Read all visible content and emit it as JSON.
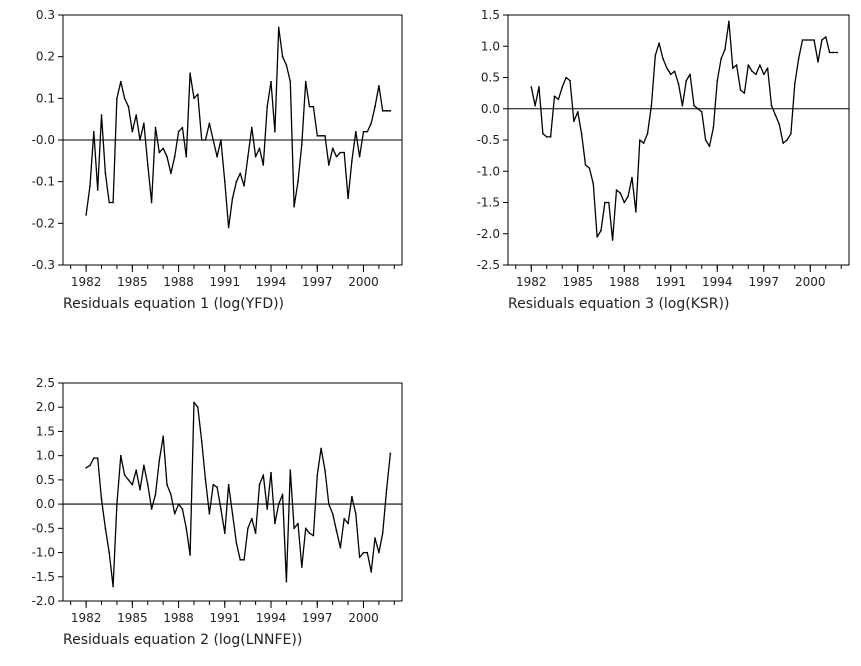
{
  "chart_data": [
    {
      "type": "line",
      "xlabel": "Residuals equation 1 (log(YFD))",
      "ylabel": "",
      "ylim": [
        -0.3,
        0.3
      ],
      "yticks": [
        "0.3",
        "0.2",
        "0.1",
        "-0.0",
        "-0.1",
        "-0.2",
        "-0.3"
      ],
      "ytick_values": [
        0.3,
        0.2,
        0.1,
        0.0,
        -0.1,
        -0.2,
        -0.3
      ],
      "xlim": [
        1980.5,
        2002.5
      ],
      "xticks": [
        "1982",
        "1985",
        "1988",
        "1991",
        "1994",
        "1997",
        "2000"
      ],
      "xtick_values": [
        1982,
        1985,
        1988,
        1991,
        1994,
        1997,
        2000
      ],
      "reference_line": 0,
      "series": [
        {
          "x": [
            1982.0,
            1982.25,
            1982.5,
            1982.75,
            1983.0,
            1983.25,
            1983.5,
            1983.75,
            1984.0,
            1984.25,
            1984.5,
            1984.75,
            1985.0,
            1985.25,
            1985.5,
            1985.75,
            1986.0,
            1986.25,
            1986.5,
            1986.75,
            1987.0,
            1987.25,
            1987.5,
            1987.75,
            1988.0,
            1988.25,
            1988.5,
            1988.75,
            1989.0,
            1989.25,
            1989.5,
            1989.75,
            1990.0,
            1990.25,
            1990.5,
            1990.75,
            1991.0,
            1991.25,
            1991.5,
            1991.75,
            1992.0,
            1992.25,
            1992.5,
            1992.75,
            1993.0,
            1993.25,
            1993.5,
            1993.75,
            1994.0,
            1994.25,
            1994.5,
            1994.75,
            1995.0,
            1995.25,
            1995.5,
            1995.75,
            1996.0,
            1996.25,
            1996.5,
            1996.75,
            1997.0,
            1997.25,
            1997.5,
            1997.75,
            1998.0,
            1998.25,
            1998.5,
            1998.75,
            1999.0,
            1999.25,
            1999.5,
            1999.75,
            2000.0,
            2000.25,
            2000.5,
            2000.75,
            2001.0,
            2001.25,
            2001.5,
            2001.75
          ],
          "values": [
            -0.18,
            -0.11,
            0.02,
            -0.12,
            0.06,
            -0.08,
            -0.15,
            -0.15,
            0.1,
            0.14,
            0.1,
            0.08,
            0.02,
            0.06,
            0.0,
            0.04,
            -0.06,
            -0.15,
            0.03,
            -0.03,
            -0.02,
            -0.04,
            -0.08,
            -0.04,
            0.02,
            0.03,
            -0.04,
            0.16,
            0.1,
            0.11,
            0.0,
            0.0,
            0.04,
            0.0,
            -0.04,
            0.0,
            -0.1,
            -0.21,
            -0.14,
            -0.1,
            -0.08,
            -0.11,
            -0.04,
            0.03,
            -0.04,
            -0.02,
            -0.06,
            0.08,
            0.14,
            0.02,
            0.27,
            0.2,
            0.18,
            0.14,
            -0.16,
            -0.1,
            -0.01,
            0.14,
            0.08,
            0.08,
            0.01,
            0.01,
            0.01,
            -0.06,
            -0.02,
            -0.04,
            -0.03,
            -0.03,
            -0.14,
            -0.05,
            0.02,
            -0.04,
            0.02,
            0.02,
            0.04,
            0.08,
            0.13,
            0.07,
            0.07,
            0.07
          ]
        }
      ]
    },
    {
      "type": "line",
      "xlabel": "Residuals equation 3 (log(KSR))",
      "ylabel": "",
      "ylim": [
        -2.5,
        1.5
      ],
      "yticks": [
        "1.5",
        "1.0",
        "0.5",
        "0.0",
        "-0.5",
        "-1.0",
        "-1.5",
        "-2.0",
        "-2.5"
      ],
      "ytick_values": [
        1.5,
        1.0,
        0.5,
        0.0,
        -0.5,
        -1.0,
        -1.5,
        -2.0,
        -2.5
      ],
      "xlim": [
        1980.5,
        2002.5
      ],
      "xticks": [
        "1982",
        "1985",
        "1988",
        "1991",
        "1994",
        "1997",
        "2000"
      ],
      "xtick_values": [
        1982,
        1985,
        1988,
        1991,
        1994,
        1997,
        2000
      ],
      "reference_line": 0,
      "series": [
        {
          "x": [
            1982.0,
            1982.25,
            1982.5,
            1982.75,
            1983.0,
            1983.25,
            1983.5,
            1983.75,
            1984.0,
            1984.25,
            1984.5,
            1984.75,
            1985.0,
            1985.25,
            1985.5,
            1985.75,
            1986.0,
            1986.25,
            1986.5,
            1986.75,
            1987.0,
            1987.25,
            1987.5,
            1987.75,
            1988.0,
            1988.25,
            1988.5,
            1988.75,
            1989.0,
            1989.25,
            1989.5,
            1989.75,
            1990.0,
            1990.25,
            1990.5,
            1990.75,
            1991.0,
            1991.25,
            1991.5,
            1991.75,
            1992.0,
            1992.25,
            1992.5,
            1992.75,
            1993.0,
            1993.25,
            1993.5,
            1993.75,
            1994.0,
            1994.25,
            1994.5,
            1994.75,
            1995.0,
            1995.25,
            1995.5,
            1995.75,
            1996.0,
            1996.25,
            1996.5,
            1996.75,
            1997.0,
            1997.25,
            1997.5,
            1997.75,
            1998.0,
            1998.25,
            1998.5,
            1998.75,
            1999.0,
            1999.25,
            1999.5,
            1999.75,
            2000.0,
            2000.25,
            2000.5,
            2000.75,
            2001.0,
            2001.25,
            2001.5,
            2001.75
          ],
          "values": [
            0.35,
            0.05,
            0.35,
            -0.4,
            -0.45,
            -0.45,
            0.2,
            0.15,
            0.35,
            0.5,
            0.45,
            -0.2,
            -0.05,
            -0.4,
            -0.9,
            -0.95,
            -1.2,
            -2.05,
            -1.95,
            -1.5,
            -1.5,
            -2.1,
            -1.3,
            -1.35,
            -1.5,
            -1.4,
            -1.1,
            -1.65,
            -0.5,
            -0.55,
            -0.4,
            0.05,
            0.85,
            1.05,
            0.8,
            0.65,
            0.55,
            0.6,
            0.4,
            0.05,
            0.45,
            0.55,
            0.05,
            0.0,
            -0.05,
            -0.5,
            -0.6,
            -0.3,
            0.45,
            0.8,
            0.95,
            1.4,
            0.65,
            0.7,
            0.3,
            0.25,
            0.7,
            0.6,
            0.55,
            0.7,
            0.55,
            0.65,
            0.05,
            -0.1,
            -0.25,
            -0.55,
            -0.5,
            -0.4,
            0.4,
            0.8,
            1.1,
            1.1,
            1.1,
            1.1,
            0.75,
            1.1,
            1.15,
            0.9,
            0.9,
            0.9
          ]
        }
      ]
    },
    {
      "type": "line",
      "xlabel": "Residuals equation 2 (log(LNNFE))",
      "ylabel": "",
      "ylim": [
        -2.0,
        2.5
      ],
      "yticks": [
        "2.5",
        "2.0",
        "1.5",
        "1.0",
        "0.5",
        "0.0",
        "-0.5",
        "-1.0",
        "-1.5",
        "-2.0"
      ],
      "ytick_values": [
        2.5,
        2.0,
        1.5,
        1.0,
        0.5,
        0.0,
        -0.5,
        -1.0,
        -1.5,
        -2.0
      ],
      "xlim": [
        1980.5,
        2002.5
      ],
      "xticks": [
        "1982",
        "1985",
        "1988",
        "1991",
        "1994",
        "1997",
        "2000"
      ],
      "xtick_values": [
        1982,
        1985,
        1988,
        1991,
        1994,
        1997,
        2000
      ],
      "reference_line": 0,
      "series": [
        {
          "x": [
            1982.0,
            1982.25,
            1982.5,
            1982.75,
            1983.0,
            1983.25,
            1983.5,
            1983.75,
            1984.0,
            1984.25,
            1984.5,
            1984.75,
            1985.0,
            1985.25,
            1985.5,
            1985.75,
            1986.0,
            1986.25,
            1986.5,
            1986.75,
            1987.0,
            1987.25,
            1987.5,
            1987.75,
            1988.0,
            1988.25,
            1988.5,
            1988.75,
            1989.0,
            1989.25,
            1989.5,
            1989.75,
            1990.0,
            1990.25,
            1990.5,
            1990.75,
            1991.0,
            1991.25,
            1991.5,
            1991.75,
            1992.0,
            1992.25,
            1992.5,
            1992.75,
            1993.0,
            1993.25,
            1993.5,
            1993.75,
            1994.0,
            1994.25,
            1994.5,
            1994.75,
            1995.0,
            1995.25,
            1995.5,
            1995.75,
            1996.0,
            1996.25,
            1996.5,
            1996.75,
            1997.0,
            1997.25,
            1997.5,
            1997.75,
            1998.0,
            1998.25,
            1998.5,
            1998.75,
            1999.0,
            1999.25,
            1999.5,
            1999.75,
            2000.0,
            2000.25,
            2000.5,
            2000.75,
            2001.0,
            2001.25,
            2001.5,
            2001.75
          ],
          "values": [
            0.75,
            0.8,
            0.95,
            0.95,
            0.1,
            -0.5,
            -1.0,
            -1.7,
            0.0,
            1.0,
            0.6,
            0.5,
            0.4,
            0.7,
            0.3,
            0.8,
            0.4,
            -0.1,
            0.2,
            0.9,
            1.4,
            0.4,
            0.2,
            -0.2,
            0.0,
            -0.1,
            -0.5,
            -1.05,
            2.1,
            2.0,
            1.3,
            0.5,
            -0.2,
            0.4,
            0.35,
            -0.1,
            -0.6,
            0.4,
            -0.2,
            -0.8,
            -1.15,
            -1.15,
            -0.5,
            -0.3,
            -0.6,
            0.4,
            0.6,
            -0.1,
            0.65,
            -0.4,
            0.0,
            0.2,
            -1.6,
            0.7,
            -0.5,
            -0.4,
            -1.3,
            -0.5,
            -0.6,
            -0.65,
            0.6,
            1.15,
            0.7,
            0.0,
            -0.2,
            -0.55,
            -0.9,
            -0.3,
            -0.4,
            0.15,
            -0.2,
            -1.1,
            -1.0,
            -1.0,
            -1.4,
            -0.7,
            -1.0,
            -0.6,
            0.3,
            1.05
          ]
        }
      ]
    }
  ]
}
